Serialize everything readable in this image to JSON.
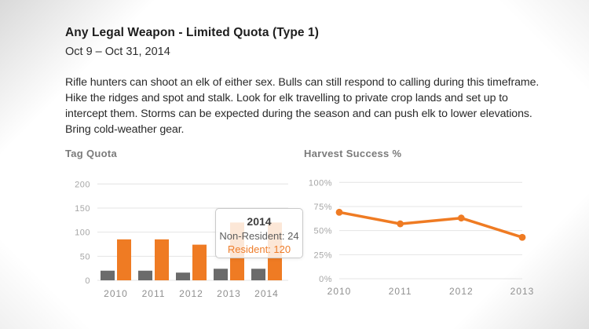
{
  "header": {
    "title": "Any Legal Weapon - Limited Quota (Type 1)",
    "date_range": "Oct 9 – Oct 31, 2014"
  },
  "description": "Rifle hunters can shoot an elk of either sex. Bulls can still respond to calling during this timeframe. Hike the ridges and spot and stalk. Look for elk travelling to private crop lands and set up to intercept them. Storms can be expected during the season and can push elk to lower elevations. Bring cold-weather gear.",
  "tooltip": {
    "year": "2014",
    "non_resident": "Non-Resident: 24",
    "resident": "Resident: 120"
  },
  "colors": {
    "orange": "#EF7B23",
    "gray": "#6B6B6B",
    "grid": "#E4E4E4",
    "y_axis_label": "#A6A6A6",
    "x_axis_label": "#8F8F8F",
    "tooltip_resident_text": "#EE7D2B"
  },
  "chart_data": [
    {
      "type": "bar",
      "title": "Tag Quota",
      "categories": [
        "2010",
        "2011",
        "2012",
        "2013",
        "2014"
      ],
      "series": [
        {
          "name": "Non-Resident",
          "color": "#6B6B6B",
          "values": [
            20,
            20,
            16,
            24,
            24
          ]
        },
        {
          "name": "Resident",
          "color": "#EF7B23",
          "values": [
            85,
            85,
            74,
            120,
            120
          ]
        }
      ],
      "xlabel": "",
      "ylabel": "",
      "ylim": [
        0,
        200
      ],
      "yticks": [
        0,
        50,
        100,
        150,
        200
      ],
      "grid": true,
      "legend_position": "none"
    },
    {
      "type": "line",
      "title": "Harvest Success %",
      "categories": [
        "2010",
        "2011",
        "2012",
        "2013"
      ],
      "series": [
        {
          "name": "Harvest Success",
          "color": "#EF7B23",
          "values": [
            69,
            57,
            63,
            43
          ]
        }
      ],
      "xlabel": "",
      "ylabel": "",
      "ylim": [
        0,
        100
      ],
      "yticks": [
        0,
        25,
        50,
        75,
        100
      ],
      "ytick_suffix": "%",
      "grid": true,
      "legend_position": "none"
    }
  ]
}
